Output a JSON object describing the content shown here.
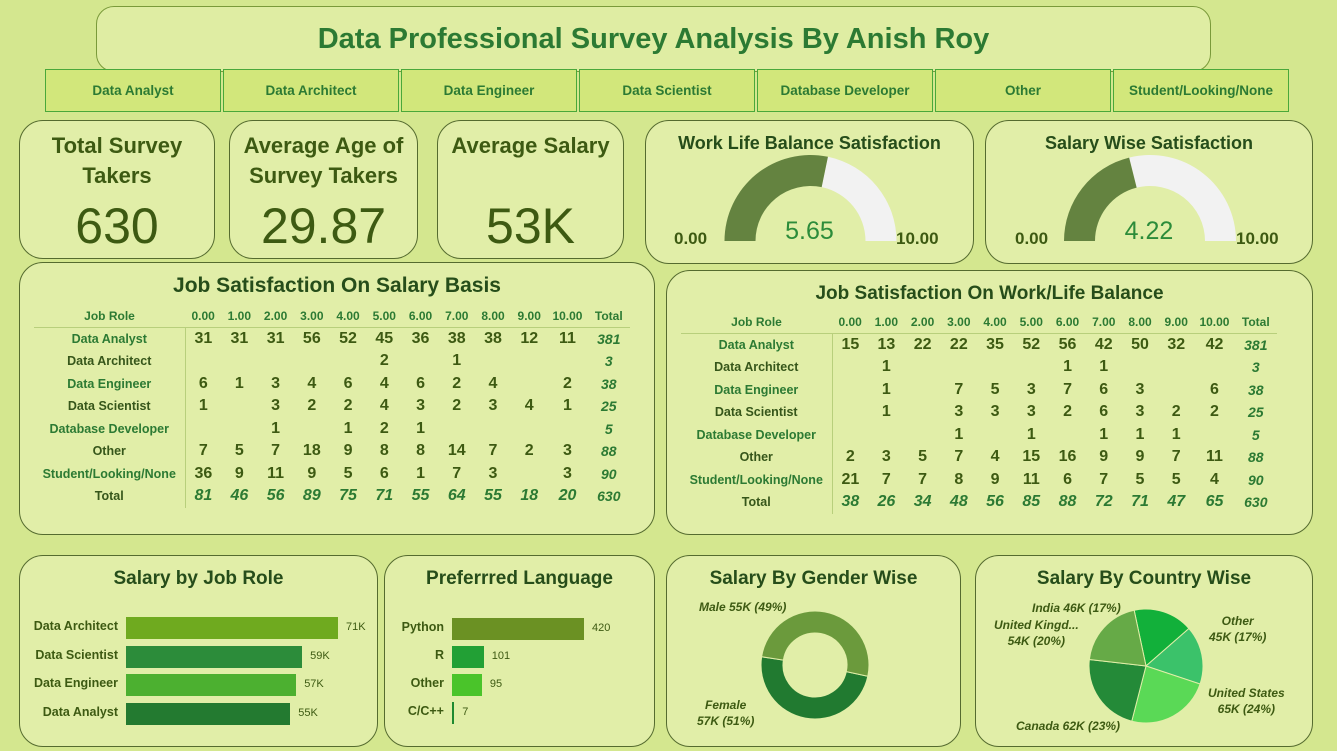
{
  "title": "Data Professional Survey Analysis By Anish Roy",
  "slicers": [
    "Data Analyst",
    "Data Architect",
    "Data Engineer",
    "Data Scientist",
    "Database Developer",
    "Other",
    "Student/Looking/None"
  ],
  "kpis": {
    "total_survey": {
      "title_line1": "Total Survey",
      "title_line2": "Takers",
      "value": "630"
    },
    "avg_age": {
      "title_line1": "Average Age of",
      "title_line2": "Survey Takers",
      "value": "29.87"
    },
    "avg_salary": {
      "title_line1": "Average Salary",
      "value": "53K"
    }
  },
  "gauges": [
    {
      "title": "Work Life Balance Satisfaction",
      "value": "5.65",
      "min": "0.00",
      "max": "10.00",
      "fraction": 0.565
    },
    {
      "title": "Salary Wise Satisfaction",
      "value": "4.22",
      "min": "0.00",
      "max": "10.00",
      "fraction": 0.422
    }
  ],
  "colors": {
    "bg": "#d4e78f",
    "panel": "#e1eea8",
    "dark_green": "#3d5a12",
    "title_green": "#2c7a33",
    "gauge_fill": "#648340",
    "gauge_track": "#f2f2f2"
  },
  "matrix_salary": {
    "title": "Job Satisfaction On Salary Basis",
    "headers": [
      "Job Role",
      "0.00",
      "1.00",
      "2.00",
      "3.00",
      "4.00",
      "5.00",
      "6.00",
      "7.00",
      "8.00",
      "9.00",
      "10.00",
      "Total"
    ],
    "rows": [
      [
        "Data Analyst",
        "31",
        "31",
        "31",
        "56",
        "52",
        "45",
        "36",
        "38",
        "38",
        "12",
        "11",
        "381"
      ],
      [
        "Data Architect",
        "",
        "",
        "",
        "",
        "",
        "2",
        "",
        "1",
        "",
        "",
        "",
        "3"
      ],
      [
        "Data Engineer",
        "6",
        "1",
        "3",
        "4",
        "6",
        "4",
        "6",
        "2",
        "4",
        "",
        "2",
        "38"
      ],
      [
        "Data Scientist",
        "1",
        "",
        "3",
        "2",
        "2",
        "4",
        "3",
        "2",
        "3",
        "4",
        "1",
        "25"
      ],
      [
        "Database Developer",
        "",
        "",
        "1",
        "",
        "1",
        "2",
        "1",
        "",
        "",
        "",
        "",
        "5"
      ],
      [
        "Other",
        "7",
        "5",
        "7",
        "18",
        "9",
        "8",
        "8",
        "14",
        "7",
        "2",
        "3",
        "88"
      ],
      [
        "Student/Looking/None",
        "36",
        "9",
        "11",
        "9",
        "5",
        "6",
        "1",
        "7",
        "3",
        "",
        "3",
        "90"
      ],
      [
        "Total",
        "81",
        "46",
        "56",
        "89",
        "75",
        "71",
        "55",
        "64",
        "55",
        "18",
        "20",
        "630"
      ]
    ]
  },
  "matrix_wlb": {
    "title": "Job Satisfaction On Work/Life Balance",
    "headers": [
      "Job Role",
      "0.00",
      "1.00",
      "2.00",
      "3.00",
      "4.00",
      "5.00",
      "6.00",
      "7.00",
      "8.00",
      "9.00",
      "10.00",
      "Total"
    ],
    "rows": [
      [
        "Data Analyst",
        "15",
        "13",
        "22",
        "22",
        "35",
        "52",
        "56",
        "42",
        "50",
        "32",
        "42",
        "381"
      ],
      [
        "Data Architect",
        "",
        "1",
        "",
        "",
        "",
        "",
        "1",
        "1",
        "",
        "",
        "",
        "3"
      ],
      [
        "Data Engineer",
        "",
        "1",
        "",
        "7",
        "5",
        "3",
        "7",
        "6",
        "3",
        "",
        "6",
        "38"
      ],
      [
        "Data Scientist",
        "",
        "1",
        "",
        "3",
        "3",
        "3",
        "2",
        "6",
        "3",
        "2",
        "2",
        "25"
      ],
      [
        "Database Developer",
        "",
        "",
        "",
        "1",
        "",
        "1",
        "",
        "1",
        "1",
        "1",
        "",
        "5"
      ],
      [
        "Other",
        "2",
        "3",
        "5",
        "7",
        "4",
        "15",
        "16",
        "9",
        "9",
        "7",
        "11",
        "88"
      ],
      [
        "Student/Looking/None",
        "21",
        "7",
        "7",
        "8",
        "9",
        "11",
        "6",
        "7",
        "5",
        "5",
        "4",
        "90"
      ],
      [
        "Total",
        "38",
        "26",
        "34",
        "48",
        "56",
        "85",
        "88",
        "72",
        "71",
        "47",
        "65",
        "630"
      ]
    ]
  },
  "chart_data": [
    {
      "type": "bar",
      "title": "Salary by Job Role",
      "categories": [
        "Data Architect",
        "Data Scientist",
        "Data Engineer",
        "Data Analyst"
      ],
      "values": [
        71,
        59,
        57,
        55
      ],
      "labels": [
        "71K",
        "59K",
        "57K",
        "55K"
      ],
      "colors": [
        "#6faa1f",
        "#2c8c3a",
        "#4cb030",
        "#237a30"
      ]
    },
    {
      "type": "bar",
      "title": "Preferrred Language",
      "categories": [
        "Python",
        "R",
        "Other",
        "C/C++"
      ],
      "values": [
        420,
        101,
        95,
        7
      ],
      "labels": [
        "420",
        "101",
        "95",
        "7"
      ],
      "colors": [
        "#6b9123",
        "#22a035",
        "#4ac42a",
        "#1e8a30"
      ]
    },
    {
      "type": "pie",
      "title": "Salary By Gender Wise",
      "donut": true,
      "slices": [
        {
          "label": "Male 55K (49%)",
          "value": 55,
          "color": "#217a30"
        },
        {
          "label_line1": "Female",
          "label_line2": "57K (51%)",
          "value": 57,
          "color": "#6b9a3c"
        }
      ]
    },
    {
      "type": "pie",
      "title": "Salary By Country Wise",
      "slices": [
        {
          "label_line1": "India 46K (17%)",
          "label_line2": "",
          "value": 46,
          "color": "#12b03a"
        },
        {
          "label_line1": "Other",
          "label_line2": "45K (17%)",
          "value": 45,
          "color": "#3bc26a"
        },
        {
          "label_line1": "United States",
          "label_line2": "65K (24%)",
          "value": 65,
          "color": "#5ad956"
        },
        {
          "label_line1": "Canada 62K (23%)",
          "label_line2": "",
          "value": 62,
          "color": "#248a38"
        },
        {
          "label_line1": "United Kingd...",
          "label_line2": "54K (20%)",
          "value": 54,
          "color": "#66aa47"
        }
      ]
    }
  ]
}
